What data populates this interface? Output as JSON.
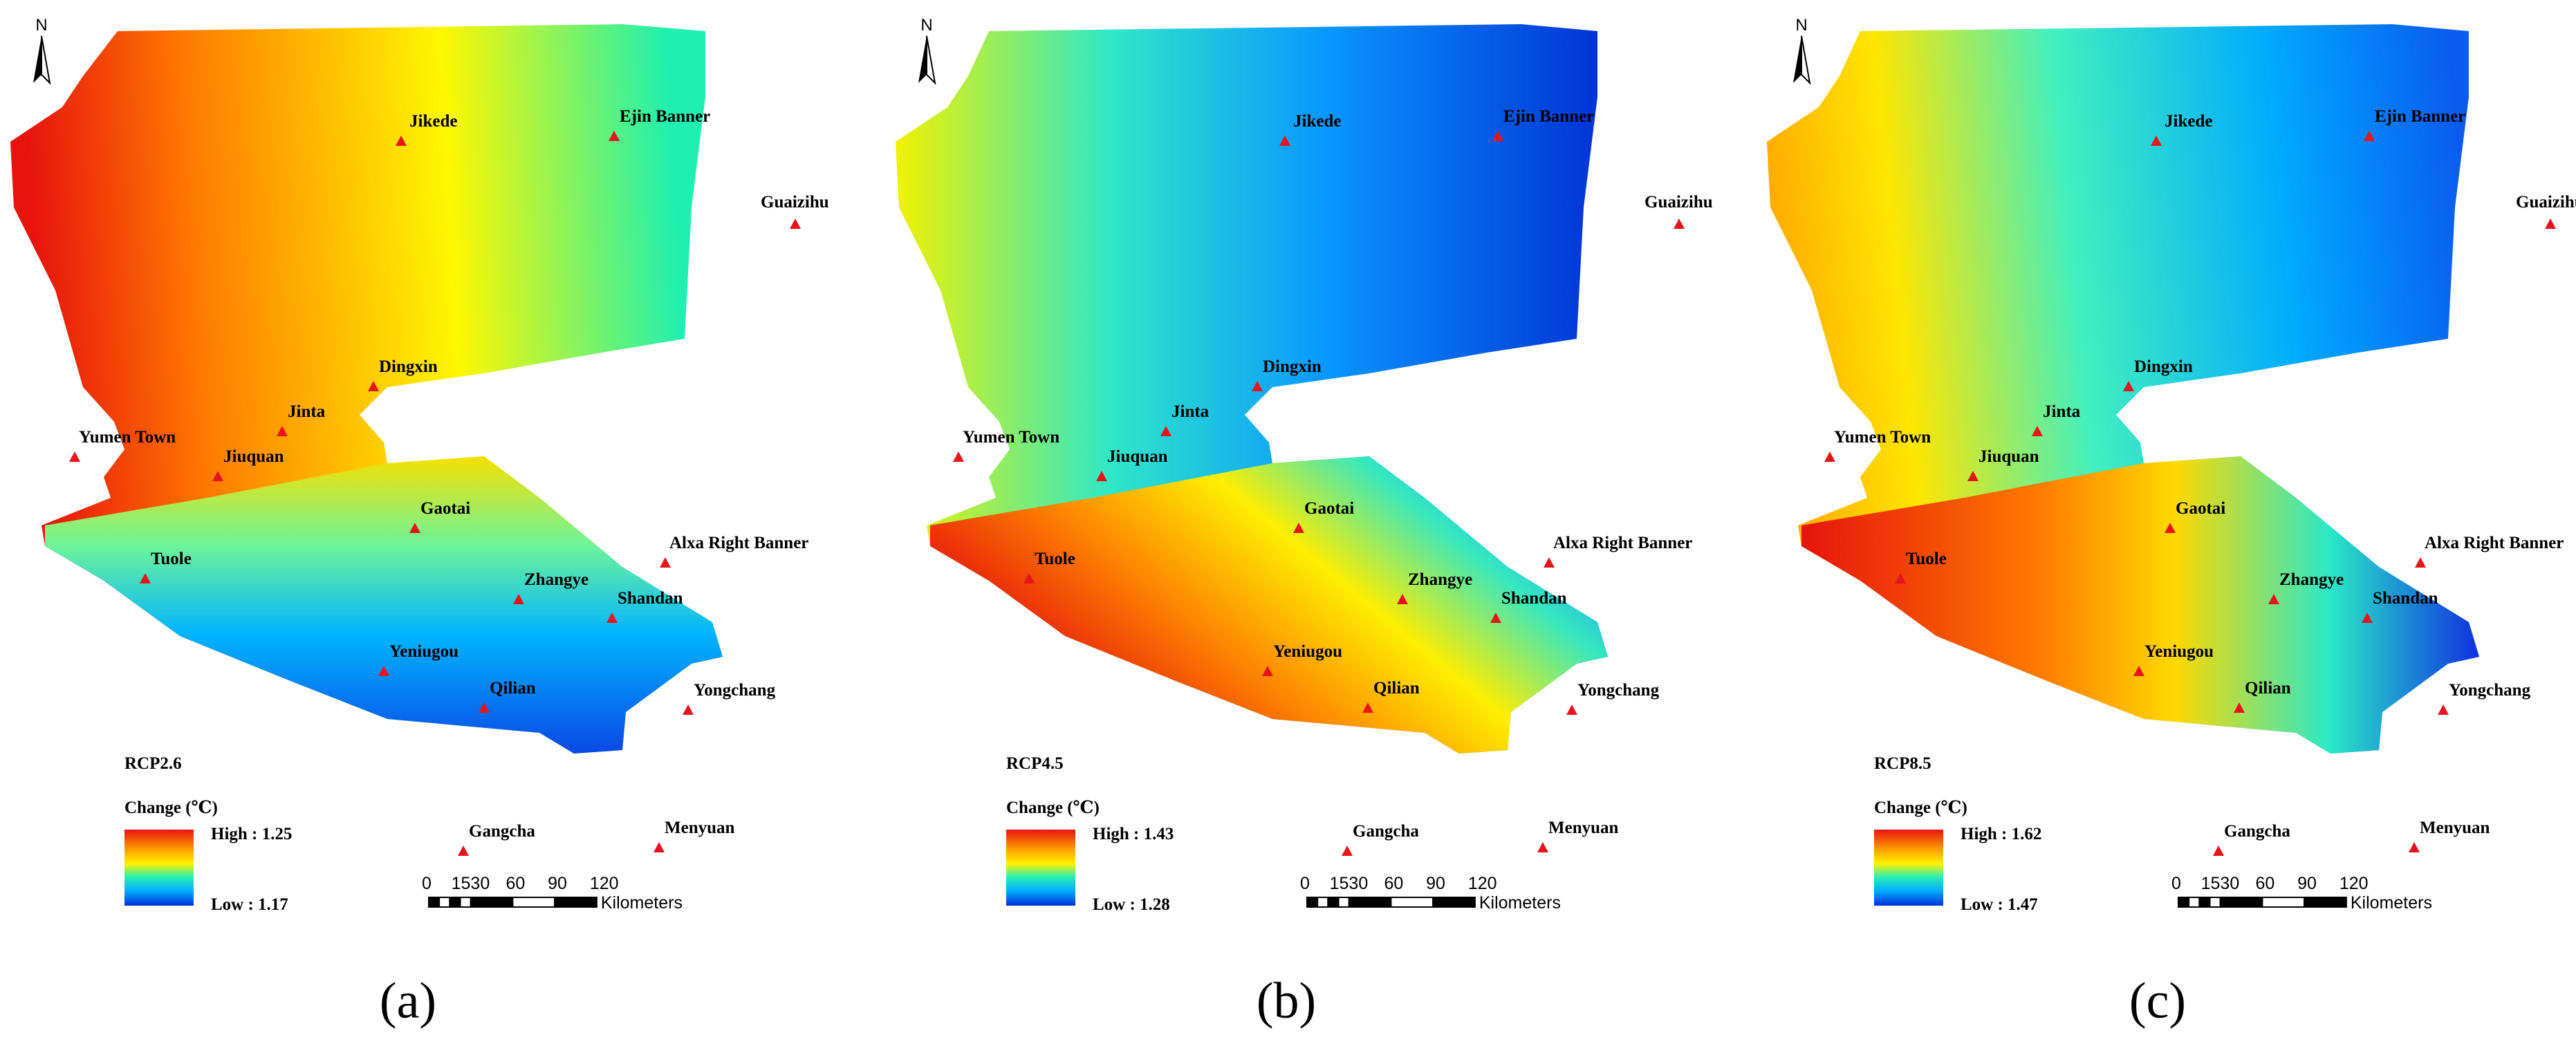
{
  "stations": [
    "Jikede",
    "Ejin Banner",
    "Guaizihu",
    "Dingxin",
    "Jinta",
    "Yumen Town",
    "Jiuquan",
    "Gaotai",
    "Alxa Right Banner",
    "Tuole",
    "Zhangye",
    "Shandan",
    "Yeniugou",
    "Qilian",
    "Yongchang",
    "Gangcha",
    "Menyuan"
  ],
  "colors": {
    "station_marker": "#e8141c",
    "ramp": [
      "#e5140f",
      "#ff7a00",
      "#fff700",
      "#1ff0b4",
      "#00b4ff",
      "#0033d6"
    ]
  },
  "north_arrow": {
    "label": "N"
  },
  "scale_bar": {
    "ticks": [
      "0",
      "15",
      "30",
      "60",
      "90",
      "120"
    ],
    "unit": "Kilometers"
  },
  "panels": [
    {
      "caption": "(a)",
      "scenario": "RCP2.6",
      "legend_title": "Change (℃)",
      "high": "High : 1.25",
      "low": "Low : 1.17",
      "gradient_stops": [
        [
          0,
          "#ff7a00"
        ],
        [
          0.6,
          "#fff700"
        ],
        [
          1,
          "#20e8c0"
        ]
      ]
    },
    {
      "caption": "(b)",
      "scenario": "RCP4.5",
      "legend_title": "Change (℃)",
      "high": "High : 1.43",
      "low": "Low : 1.28",
      "gradient_stops": [
        [
          0,
          "#39dff0"
        ],
        [
          0.45,
          "#00a8f5"
        ],
        [
          1,
          "#0046e0"
        ]
      ]
    },
    {
      "caption": "(c)",
      "scenario": "RCP8.5",
      "legend_title": "Change (℃)",
      "high": "High : 1.62",
      "low": "Low : 1.47",
      "gradient_stops": [
        [
          0,
          "#3ae8e8"
        ],
        [
          0.5,
          "#00c2f2"
        ],
        [
          1,
          "#0060e6"
        ]
      ]
    }
  ]
}
